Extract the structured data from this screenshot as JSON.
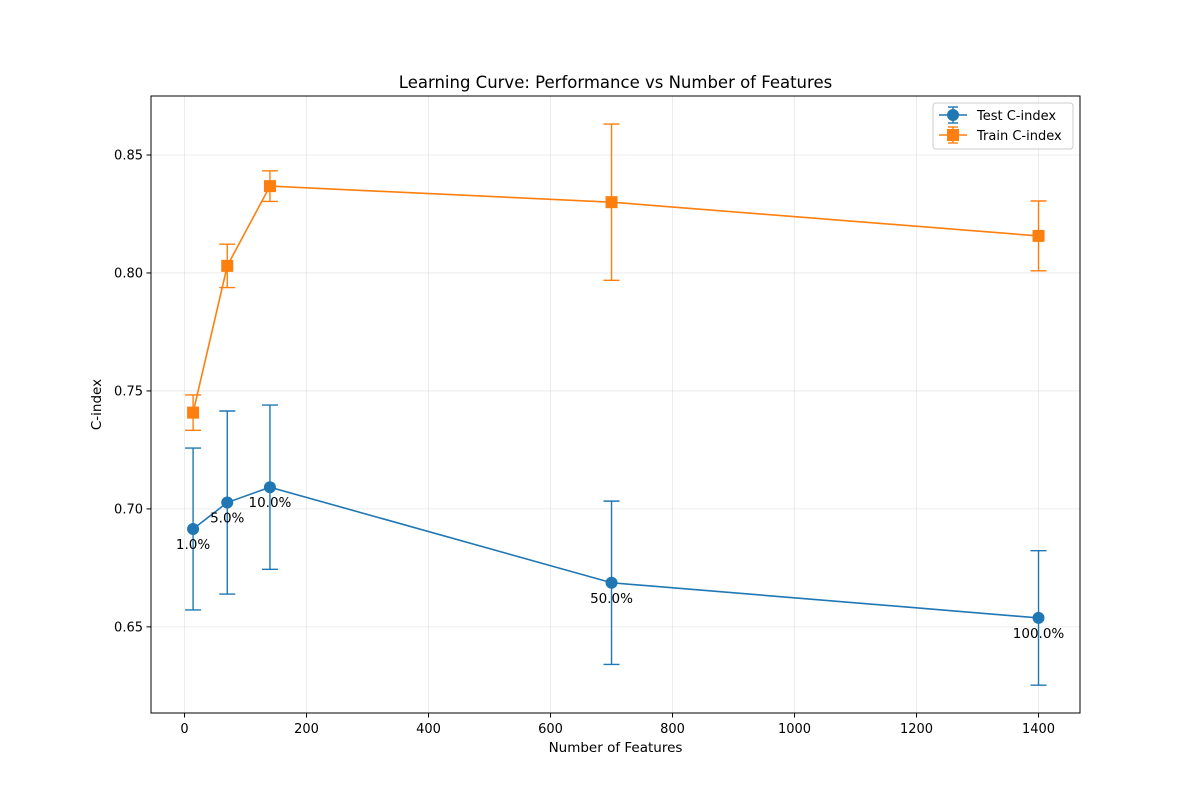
{
  "chart_data": {
    "type": "line",
    "title": "Learning Curve: Performance vs Number of Features",
    "xlabel": "Number of Features",
    "ylabel": "C-index",
    "xlim": [
      -55,
      1468
    ],
    "ylim": [
      0.6135,
      0.875
    ],
    "xticks": [
      0,
      200,
      400,
      600,
      800,
      1000,
      1200,
      1400
    ],
    "yticks": [
      0.65,
      0.7,
      0.75,
      0.8,
      0.85
    ],
    "grid": true,
    "legend_position": "top-right",
    "x": [
      14,
      70,
      140,
      700,
      1400
    ],
    "series": [
      {
        "name": "Test C-index",
        "color": "#1f77b4",
        "marker": "circle",
        "values": [
          0.6915,
          0.7027,
          0.7092,
          0.6687,
          0.6538
        ],
        "errors": [
          0.0343,
          0.0388,
          0.0348,
          0.0346,
          0.0285
        ]
      },
      {
        "name": "Train C-index",
        "color": "#ff7f0e",
        "marker": "square",
        "values": [
          0.7408,
          0.803,
          0.8368,
          0.83,
          0.8157
        ],
        "errors": [
          0.0075,
          0.0092,
          0.0065,
          0.0331,
          0.0148
        ]
      }
    ],
    "annotations": [
      "1.0%",
      "5.0%",
      "10.0%",
      "50.0%",
      "100.0%"
    ]
  }
}
